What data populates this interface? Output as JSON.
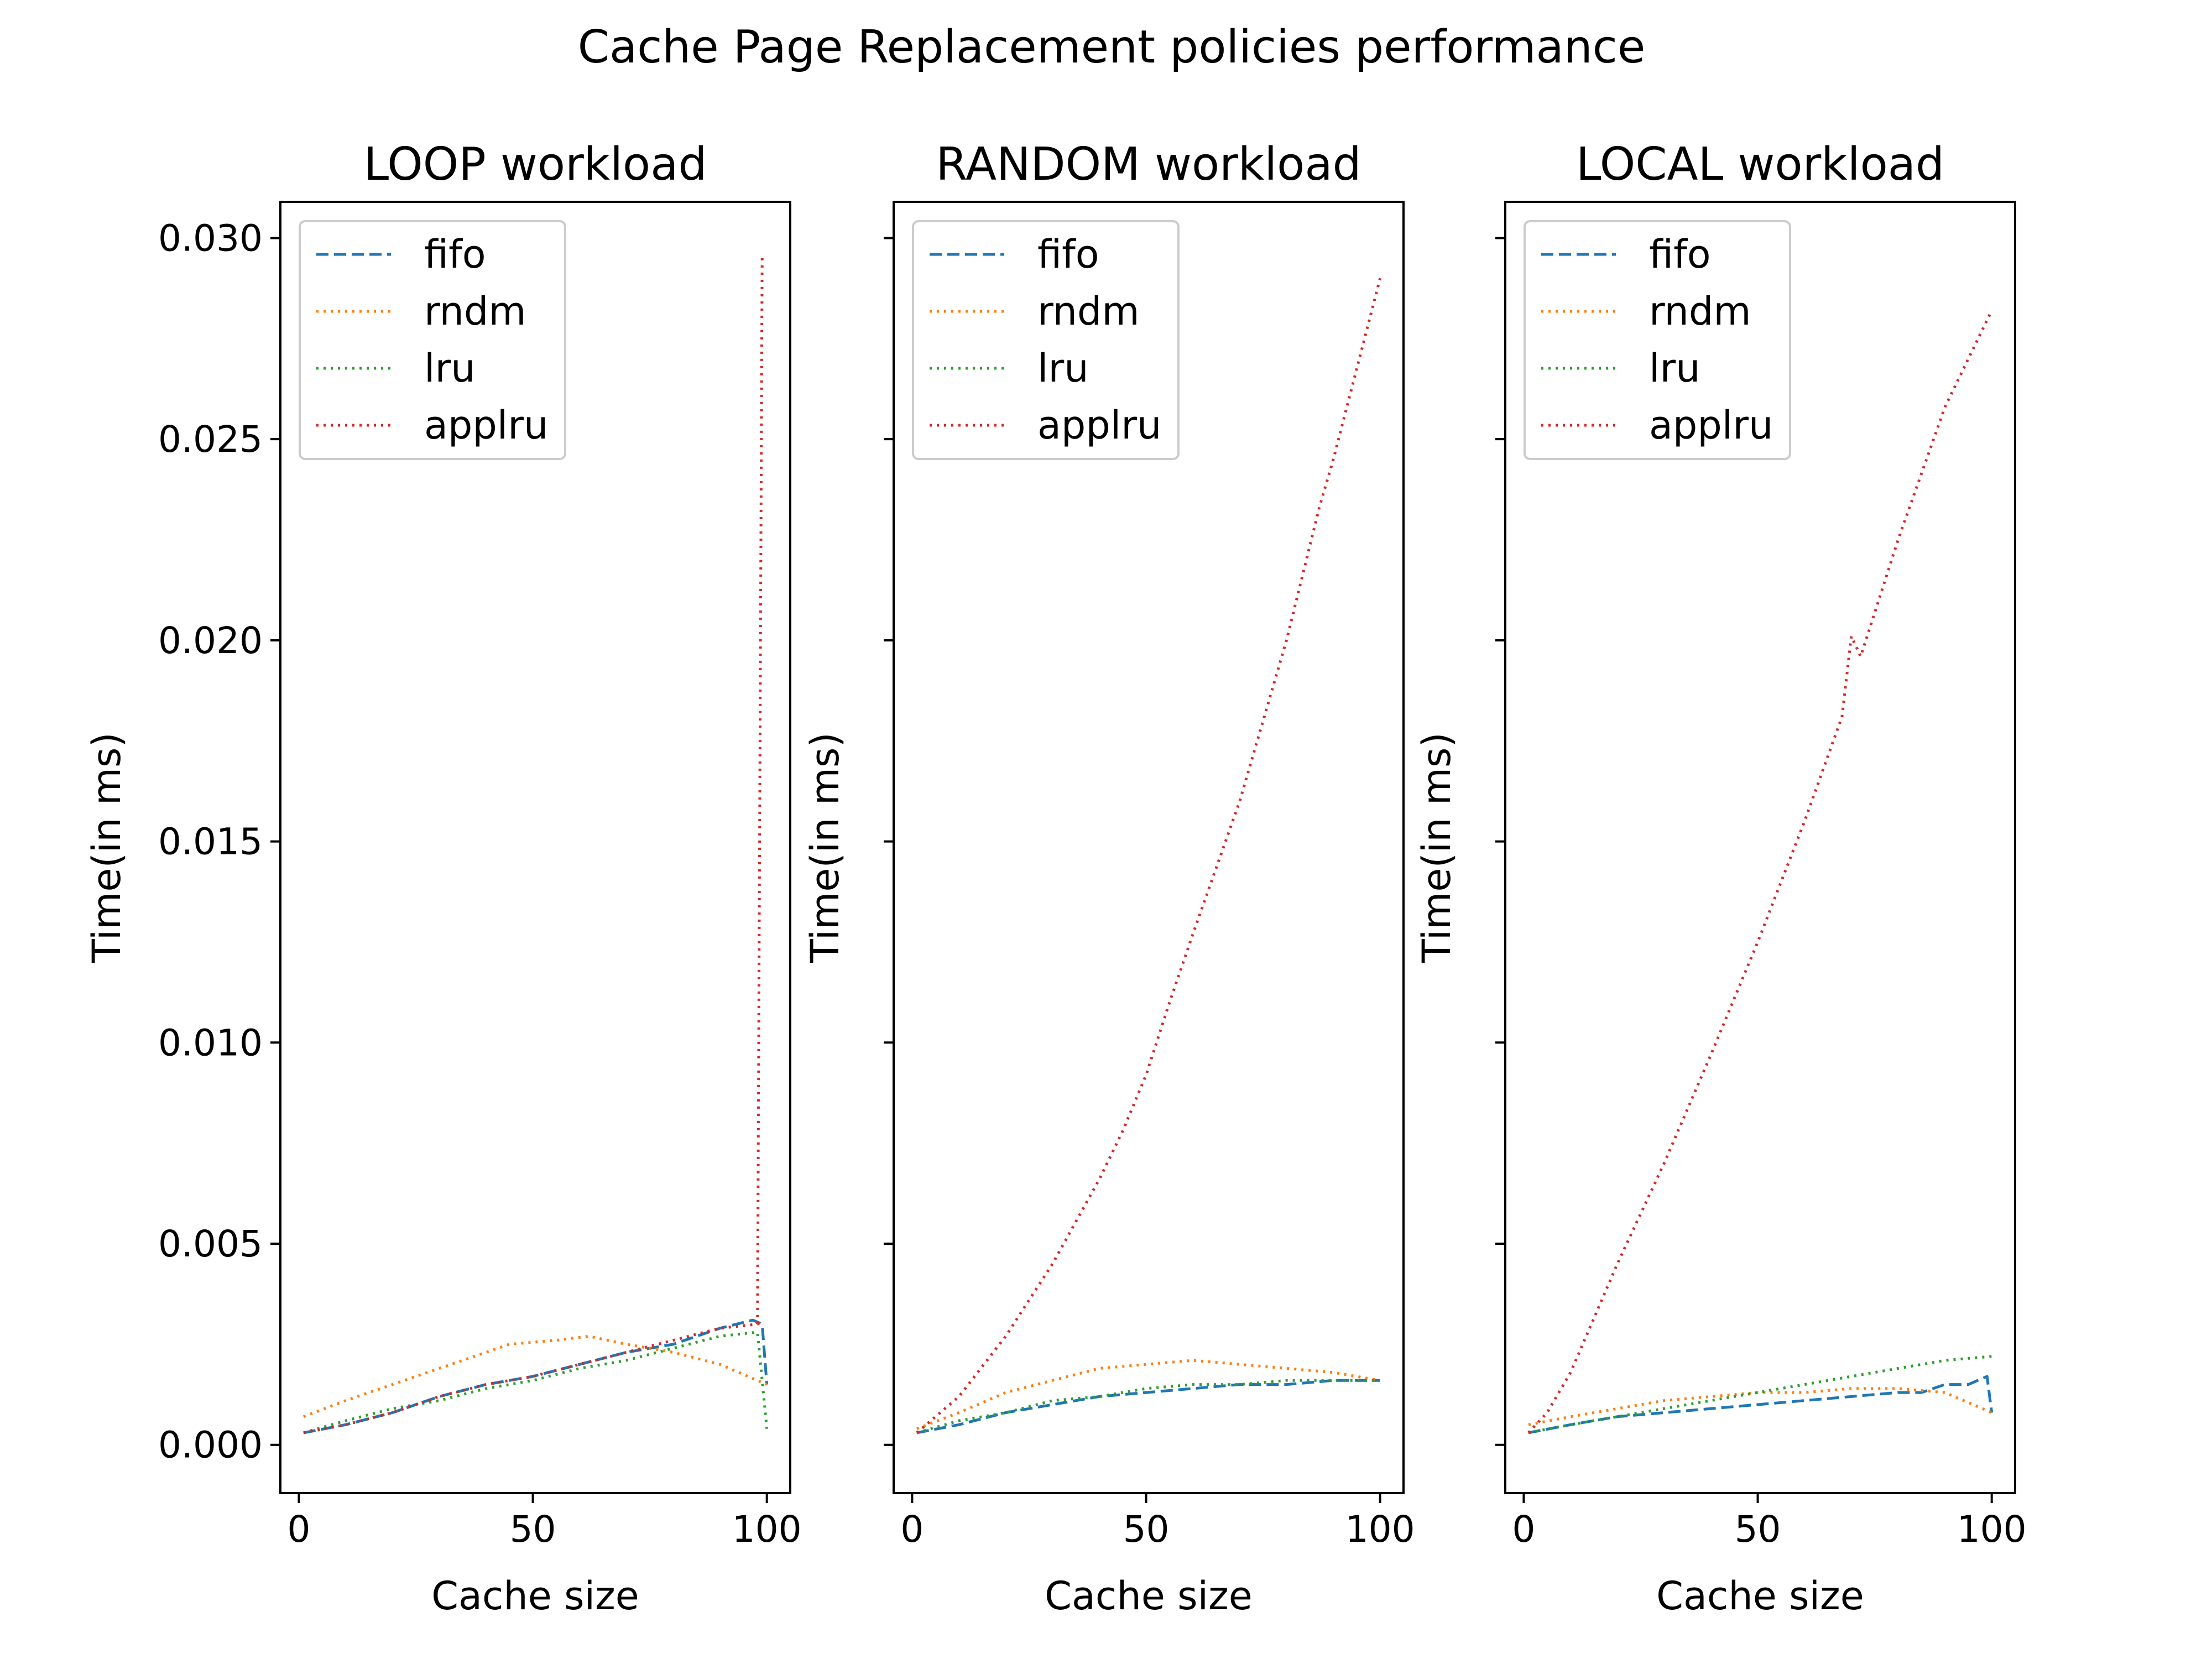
{
  "figure": {
    "suptitle": "Cache Page Replacement policies performance"
  },
  "colors": {
    "fifo": "#1f77b4",
    "rndm": "#ff7f0e",
    "lru": "#2ca02c",
    "applru": "#d62728"
  },
  "chart_data": [
    {
      "type": "line",
      "title": "LOOP workload",
      "xlabel": "Cache size",
      "ylabel": "Time(in ms)",
      "xlim": [
        -3.95,
        105
      ],
      "ylim": [
        -0.0012,
        0.0309
      ],
      "xticks": [
        0,
        50,
        100
      ],
      "yticks": [
        0.0,
        0.005,
        0.01,
        0.015,
        0.02,
        0.025,
        0.03
      ],
      "ytick_labels": [
        "0.000",
        "0.005",
        "0.010",
        "0.015",
        "0.020",
        "0.025",
        "0.030"
      ],
      "legend": {
        "position": "top-left",
        "entries": [
          "fifo",
          "rndm",
          "lru",
          "applru"
        ]
      },
      "series": [
        {
          "name": "fifo",
          "style": "dashed",
          "x": [
            1,
            10,
            20,
            30,
            40,
            50,
            60,
            70,
            80,
            90,
            97,
            99,
            100
          ],
          "y": [
            0.0003,
            0.0005,
            0.0008,
            0.0012,
            0.0015,
            0.0017,
            0.002,
            0.0023,
            0.0025,
            0.0029,
            0.0031,
            0.003,
            0.0015
          ]
        },
        {
          "name": "rndm",
          "style": "dotted",
          "x": [
            1,
            10,
            20,
            30,
            40,
            45,
            55,
            62,
            70,
            80,
            90,
            100
          ],
          "y": [
            0.0007,
            0.0011,
            0.0015,
            0.0019,
            0.0023,
            0.0025,
            0.0026,
            0.0027,
            0.0025,
            0.0023,
            0.002,
            0.0015
          ]
        },
        {
          "name": "lru",
          "style": "dotted",
          "x": [
            1,
            10,
            20,
            30,
            40,
            50,
            60,
            70,
            80,
            90,
            98,
            100
          ],
          "y": [
            0.0003,
            0.0006,
            0.0009,
            0.0011,
            0.0014,
            0.0016,
            0.0019,
            0.0021,
            0.0024,
            0.0027,
            0.0028,
            0.0004
          ]
        },
        {
          "name": "applru",
          "style": "dotted",
          "x": [
            1,
            10,
            20,
            30,
            40,
            50,
            60,
            70,
            80,
            90,
            98,
            99,
            100
          ],
          "y": [
            0.0003,
            0.0005,
            0.0008,
            0.0012,
            0.0015,
            0.0017,
            0.002,
            0.0023,
            0.0026,
            0.0029,
            0.003,
            0.0295,
            0.0295
          ]
        }
      ]
    },
    {
      "type": "line",
      "title": "RANDOM workload",
      "xlabel": "Cache size",
      "ylabel": "Time(in ms)",
      "xlim": [
        -3.95,
        105
      ],
      "ylim": [
        -0.0012,
        0.0309
      ],
      "xticks": [
        0,
        50,
        100
      ],
      "yticks": [
        0.0,
        0.005,
        0.01,
        0.015,
        0.02,
        0.025,
        0.03
      ],
      "ytick_labels": [
        "",
        "",
        "",
        "",
        "",
        "",
        ""
      ],
      "legend": {
        "position": "top-left",
        "entries": [
          "fifo",
          "rndm",
          "lru",
          "applru"
        ]
      },
      "series": [
        {
          "name": "fifo",
          "style": "dashed",
          "x": [
            1,
            10,
            20,
            30,
            40,
            50,
            60,
            70,
            80,
            90,
            95,
            100
          ],
          "y": [
            0.0003,
            0.0005,
            0.0008,
            0.001,
            0.0012,
            0.0013,
            0.0014,
            0.0015,
            0.0015,
            0.0016,
            0.0016,
            0.0016
          ]
        },
        {
          "name": "rndm",
          "style": "dotted",
          "x": [
            1,
            10,
            20,
            30,
            40,
            50,
            60,
            70,
            80,
            90,
            100
          ],
          "y": [
            0.0004,
            0.0008,
            0.0013,
            0.0016,
            0.0019,
            0.002,
            0.0021,
            0.002,
            0.0019,
            0.0018,
            0.0016
          ]
        },
        {
          "name": "lru",
          "style": "dotted",
          "x": [
            1,
            10,
            20,
            30,
            40,
            50,
            60,
            70,
            80,
            90,
            100
          ],
          "y": [
            0.0003,
            0.0006,
            0.0008,
            0.0011,
            0.0012,
            0.0014,
            0.0015,
            0.0015,
            0.0016,
            0.0016,
            0.0016
          ]
        },
        {
          "name": "applru",
          "style": "dotted",
          "x": [
            1,
            10,
            20,
            30,
            40,
            45,
            50,
            55,
            60,
            70,
            80,
            87,
            90,
            100
          ],
          "y": [
            0.0003,
            0.0012,
            0.0027,
            0.0045,
            0.0066,
            0.0078,
            0.0092,
            0.011,
            0.0127,
            0.016,
            0.02,
            0.0233,
            0.0245,
            0.029
          ]
        }
      ]
    },
    {
      "type": "line",
      "title": "LOCAL workload",
      "xlabel": "Cache size",
      "ylabel": "Time(in ms)",
      "xlim": [
        -3.95,
        105
      ],
      "ylim": [
        -0.0012,
        0.0309
      ],
      "xticks": [
        0,
        50,
        100
      ],
      "yticks": [
        0.0,
        0.005,
        0.01,
        0.015,
        0.02,
        0.025,
        0.03
      ],
      "ytick_labels": [
        "",
        "",
        "",
        "",
        "",
        "",
        ""
      ],
      "legend": {
        "position": "top-left",
        "entries": [
          "fifo",
          "rndm",
          "lru",
          "applru"
        ]
      },
      "series": [
        {
          "name": "fifo",
          "style": "dashed",
          "x": [
            1,
            10,
            20,
            30,
            40,
            50,
            60,
            70,
            80,
            85,
            90,
            95,
            99,
            100
          ],
          "y": [
            0.0003,
            0.0005,
            0.0007,
            0.0008,
            0.0009,
            0.001,
            0.0011,
            0.0012,
            0.0013,
            0.0013,
            0.0015,
            0.0015,
            0.0017,
            0.0008
          ]
        },
        {
          "name": "rndm",
          "style": "dotted",
          "x": [
            1,
            10,
            20,
            30,
            40,
            50,
            60,
            70,
            80,
            90,
            100
          ],
          "y": [
            0.0005,
            0.0007,
            0.0009,
            0.0011,
            0.0012,
            0.0013,
            0.0013,
            0.0014,
            0.0014,
            0.0013,
            0.0008
          ]
        },
        {
          "name": "lru",
          "style": "dotted",
          "x": [
            1,
            10,
            20,
            30,
            40,
            50,
            60,
            70,
            80,
            90,
            100
          ],
          "y": [
            0.0003,
            0.0005,
            0.0007,
            0.0009,
            0.0011,
            0.0013,
            0.0015,
            0.0017,
            0.0019,
            0.0021,
            0.0022
          ]
        },
        {
          "name": "applru",
          "style": "dotted",
          "x": [
            1,
            5,
            10,
            20,
            30,
            40,
            50,
            60,
            68,
            70,
            72,
            80,
            90,
            100
          ],
          "y": [
            0.0003,
            0.0008,
            0.0018,
            0.0045,
            0.007,
            0.0097,
            0.0125,
            0.0155,
            0.0181,
            0.0201,
            0.0196,
            0.0225,
            0.0258,
            0.0282
          ]
        }
      ]
    }
  ]
}
